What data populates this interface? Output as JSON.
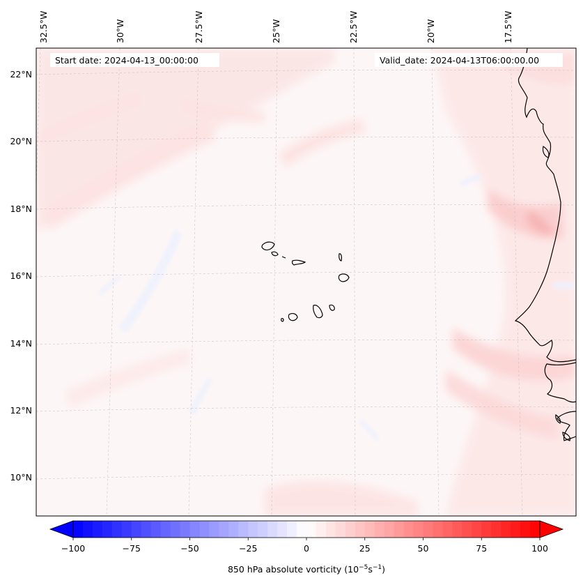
{
  "map": {
    "start_label": "Start date: 2024-04-13_00:00:00",
    "valid_label": "Valid_date: 2024-04-13T06:00:00.00",
    "longitude_labels": [
      "32.5°W",
      "30°W",
      "27.5°W",
      "25°W",
      "22.5°W",
      "20°W",
      "17.5°W"
    ],
    "latitude_labels": [
      "22°N",
      "20°N",
      "18°N",
      "16°N",
      "14°N",
      "12°N",
      "10°N"
    ],
    "colorbar": {
      "ticks": [
        "−100",
        "−75",
        "−50",
        "−25",
        "0",
        "25",
        "50",
        "75",
        "100"
      ],
      "label": "850 hPa absolute vorticity (10",
      "label_exp1": "−5",
      "label_mid": "s",
      "label_exp2": "−1",
      "label_end": ")",
      "min": -100,
      "max": 100,
      "levels": 48
    },
    "colors": {
      "neg_end": "#0000ff",
      "pos_end": "#ff0000",
      "background_field": "#fdf6f6",
      "coast": "#000000"
    }
  }
}
